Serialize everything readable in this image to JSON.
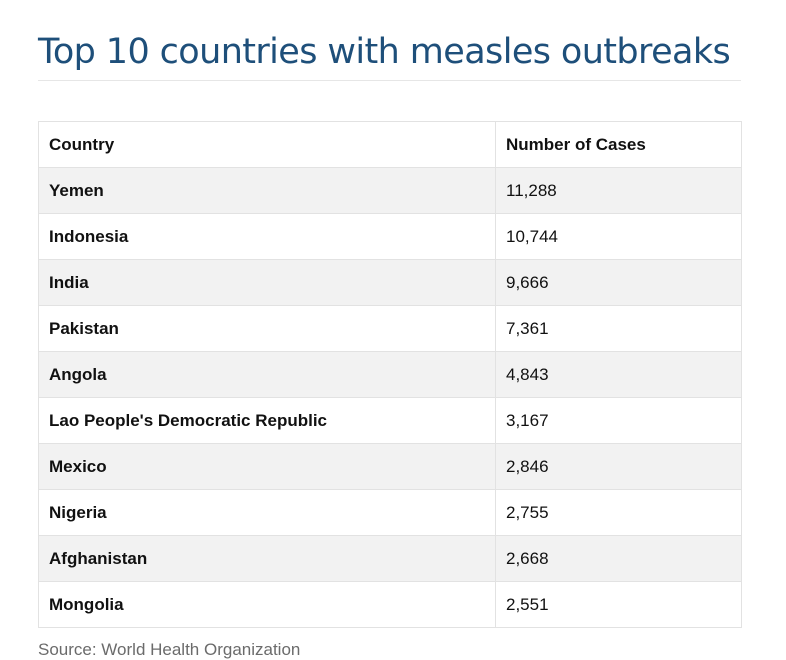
{
  "title": "Top 10 countries with measles outbreaks",
  "colors": {
    "title": "#1e4f7a",
    "row_odd": "#f2f2f2",
    "row_even": "#ffffff",
    "border": "#e2e2e2",
    "source_text": "#6b6b6b"
  },
  "table": {
    "headers": [
      "Country",
      "Number of Cases"
    ],
    "rows": [
      {
        "country": "Yemen",
        "cases": "11,288"
      },
      {
        "country": "Indonesia",
        "cases": "10,744"
      },
      {
        "country": "India",
        "cases": "9,666"
      },
      {
        "country": "Pakistan",
        "cases": "7,361"
      },
      {
        "country": "Angola",
        "cases": "4,843"
      },
      {
        "country": "Lao People's Democratic Republic",
        "cases": "3,167"
      },
      {
        "country": "Mexico",
        "cases": "2,846"
      },
      {
        "country": "Nigeria",
        "cases": "2,755"
      },
      {
        "country": "Afghanistan",
        "cases": "2,668"
      },
      {
        "country": "Mongolia",
        "cases": "2,551"
      }
    ]
  },
  "source": "Source: World Health Organization"
}
